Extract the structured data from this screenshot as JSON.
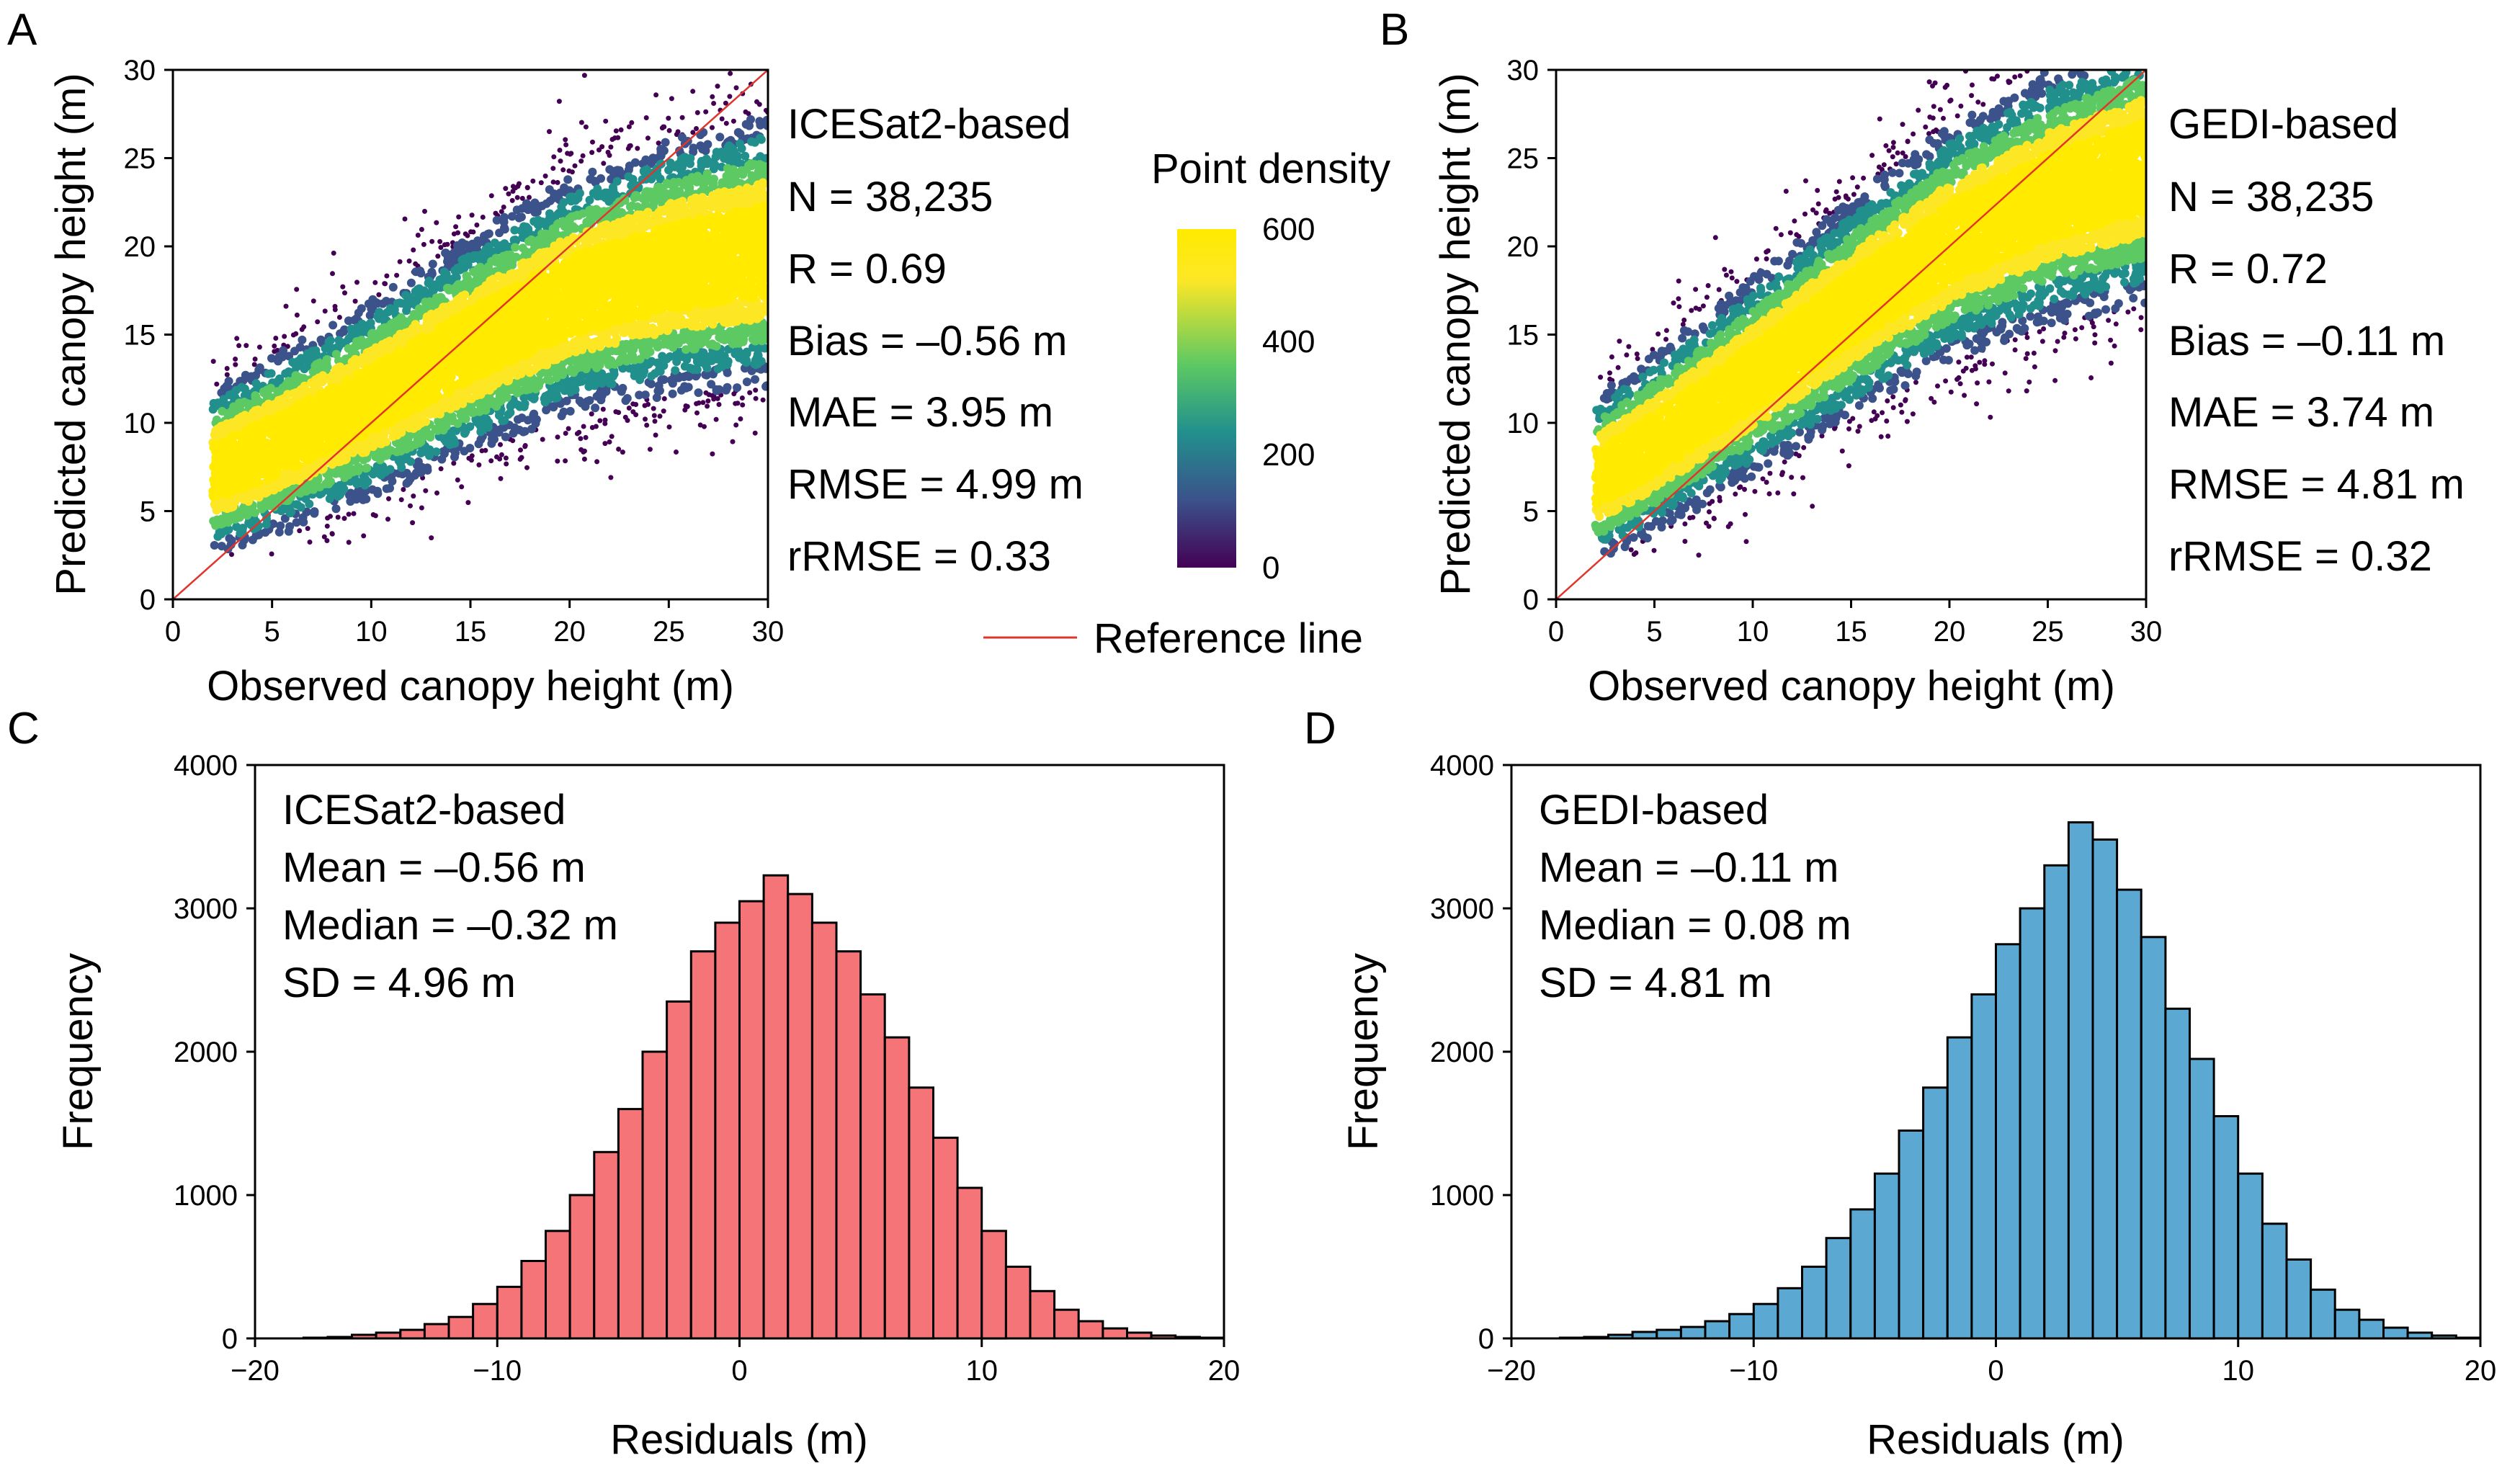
{
  "colors": {
    "reference_line": "#e0352b",
    "hist_c_fill": "#f57477",
    "hist_d_fill": "#5ba9d2",
    "bar_edge": "#000000",
    "density_ramp": [
      "#440154",
      "#3b528b",
      "#21908d",
      "#5dc963",
      "#fde725",
      "#ffea00"
    ]
  },
  "legend": {
    "colorbar_title": "Point density",
    "colorbar_ticks": [
      "0",
      "200",
      "400",
      "600"
    ],
    "reference_label": "Reference line"
  },
  "chart_data": [
    {
      "panel": "A",
      "type": "scatter",
      "subtype": "density scatter",
      "xlabel": "Observed canopy height (m)",
      "ylabel": "Predicted canopy height (m)",
      "xlim": [
        0,
        30
      ],
      "ylim": [
        0,
        30
      ],
      "xticks": [
        "0",
        "5",
        "10",
        "15",
        "20",
        "25",
        "30"
      ],
      "yticks": [
        "0",
        "5",
        "10",
        "15",
        "20",
        "25",
        "30"
      ],
      "reference_line": [
        [
          0,
          0
        ],
        [
          30,
          30
        ]
      ],
      "stats_title": "ICESat2-based",
      "stats": [
        "N = 38,235",
        "R = 0.69",
        "Bias = –0.56 m",
        "MAE = 3.95 m",
        "RMSE = 4.99 m",
        "rRMSE = 0.33"
      ],
      "density_core": [
        [
          2,
          7.2
        ],
        [
          5,
          8.6
        ],
        [
          10,
          11.3
        ],
        [
          15,
          14.4
        ],
        [
          20,
          17.2
        ],
        [
          25,
          18.8
        ],
        [
          30,
          19.8
        ]
      ],
      "density_scale": [
        0,
        600
      ]
    },
    {
      "panel": "B",
      "type": "scatter",
      "subtype": "density scatter",
      "xlabel": "Observed canopy height (m)",
      "ylabel": "Predicted canopy height (m)",
      "xlim": [
        0,
        30
      ],
      "ylim": [
        0,
        30
      ],
      "xticks": [
        "0",
        "5",
        "10",
        "15",
        "20",
        "25",
        "30"
      ],
      "yticks": [
        "0",
        "5",
        "10",
        "15",
        "20",
        "25",
        "30"
      ],
      "reference_line": [
        [
          0,
          0
        ],
        [
          30,
          30
        ]
      ],
      "stats_title": "GEDI-based",
      "stats": [
        "N = 38,235",
        "R = 0.72",
        "Bias = –0.11 m",
        "MAE = 3.74 m",
        "RMSE = 4.81 m",
        "rRMSE = 0.32"
      ],
      "density_core": [
        [
          2,
          6.8
        ],
        [
          5,
          8.8
        ],
        [
          10,
          12.6
        ],
        [
          15,
          16.5
        ],
        [
          20,
          20.2
        ],
        [
          25,
          22.8
        ],
        [
          30,
          24.5
        ]
      ],
      "density_scale": [
        0,
        600
      ]
    },
    {
      "panel": "C",
      "type": "bar",
      "subtype": "histogram",
      "xlabel": "Residuals (m)",
      "ylabel": "Frequency",
      "xlim": [
        -20,
        20
      ],
      "ylim": [
        0,
        4000
      ],
      "xticks": [
        "−20",
        "−10",
        "0",
        "10",
        "20"
      ],
      "yticks": [
        "0",
        "1000",
        "2000",
        "3000",
        "4000"
      ],
      "bin_width": 1,
      "bin_start": -20,
      "values": [
        0,
        0,
        5,
        10,
        25,
        40,
        60,
        100,
        150,
        240,
        360,
        540,
        750,
        1000,
        1300,
        1600,
        2000,
        2350,
        2700,
        2900,
        3050,
        3230,
        3100,
        2900,
        2700,
        2400,
        2100,
        1750,
        1400,
        1050,
        750,
        500,
        330,
        200,
        120,
        70,
        40,
        20,
        10,
        5
      ],
      "stats_title": "ICESat2-based",
      "stats": [
        "Mean = –0.56 m",
        "Median = –0.32 m",
        "SD = 4.96 m"
      ]
    },
    {
      "panel": "D",
      "type": "bar",
      "subtype": "histogram",
      "xlabel": "Residuals (m)",
      "ylabel": "Frequency",
      "xlim": [
        -20,
        20
      ],
      "ylim": [
        0,
        4000
      ],
      "xticks": [
        "−20",
        "−10",
        "0",
        "10",
        "20"
      ],
      "yticks": [
        "0",
        "1000",
        "2000",
        "3000",
        "4000"
      ],
      "bin_width": 1,
      "bin_start": -20,
      "values": [
        0,
        0,
        5,
        10,
        25,
        45,
        60,
        80,
        120,
        170,
        240,
        350,
        500,
        700,
        900,
        1150,
        1450,
        1750,
        2100,
        2400,
        2750,
        3000,
        3300,
        3600,
        3480,
        3130,
        2800,
        2300,
        1950,
        1550,
        1150,
        800,
        550,
        340,
        200,
        130,
        75,
        40,
        20,
        5
      ],
      "stats_title": "GEDI-based",
      "stats": [
        "Mean = –0.11 m",
        "Median = 0.08 m",
        "SD = 4.81 m"
      ]
    }
  ]
}
